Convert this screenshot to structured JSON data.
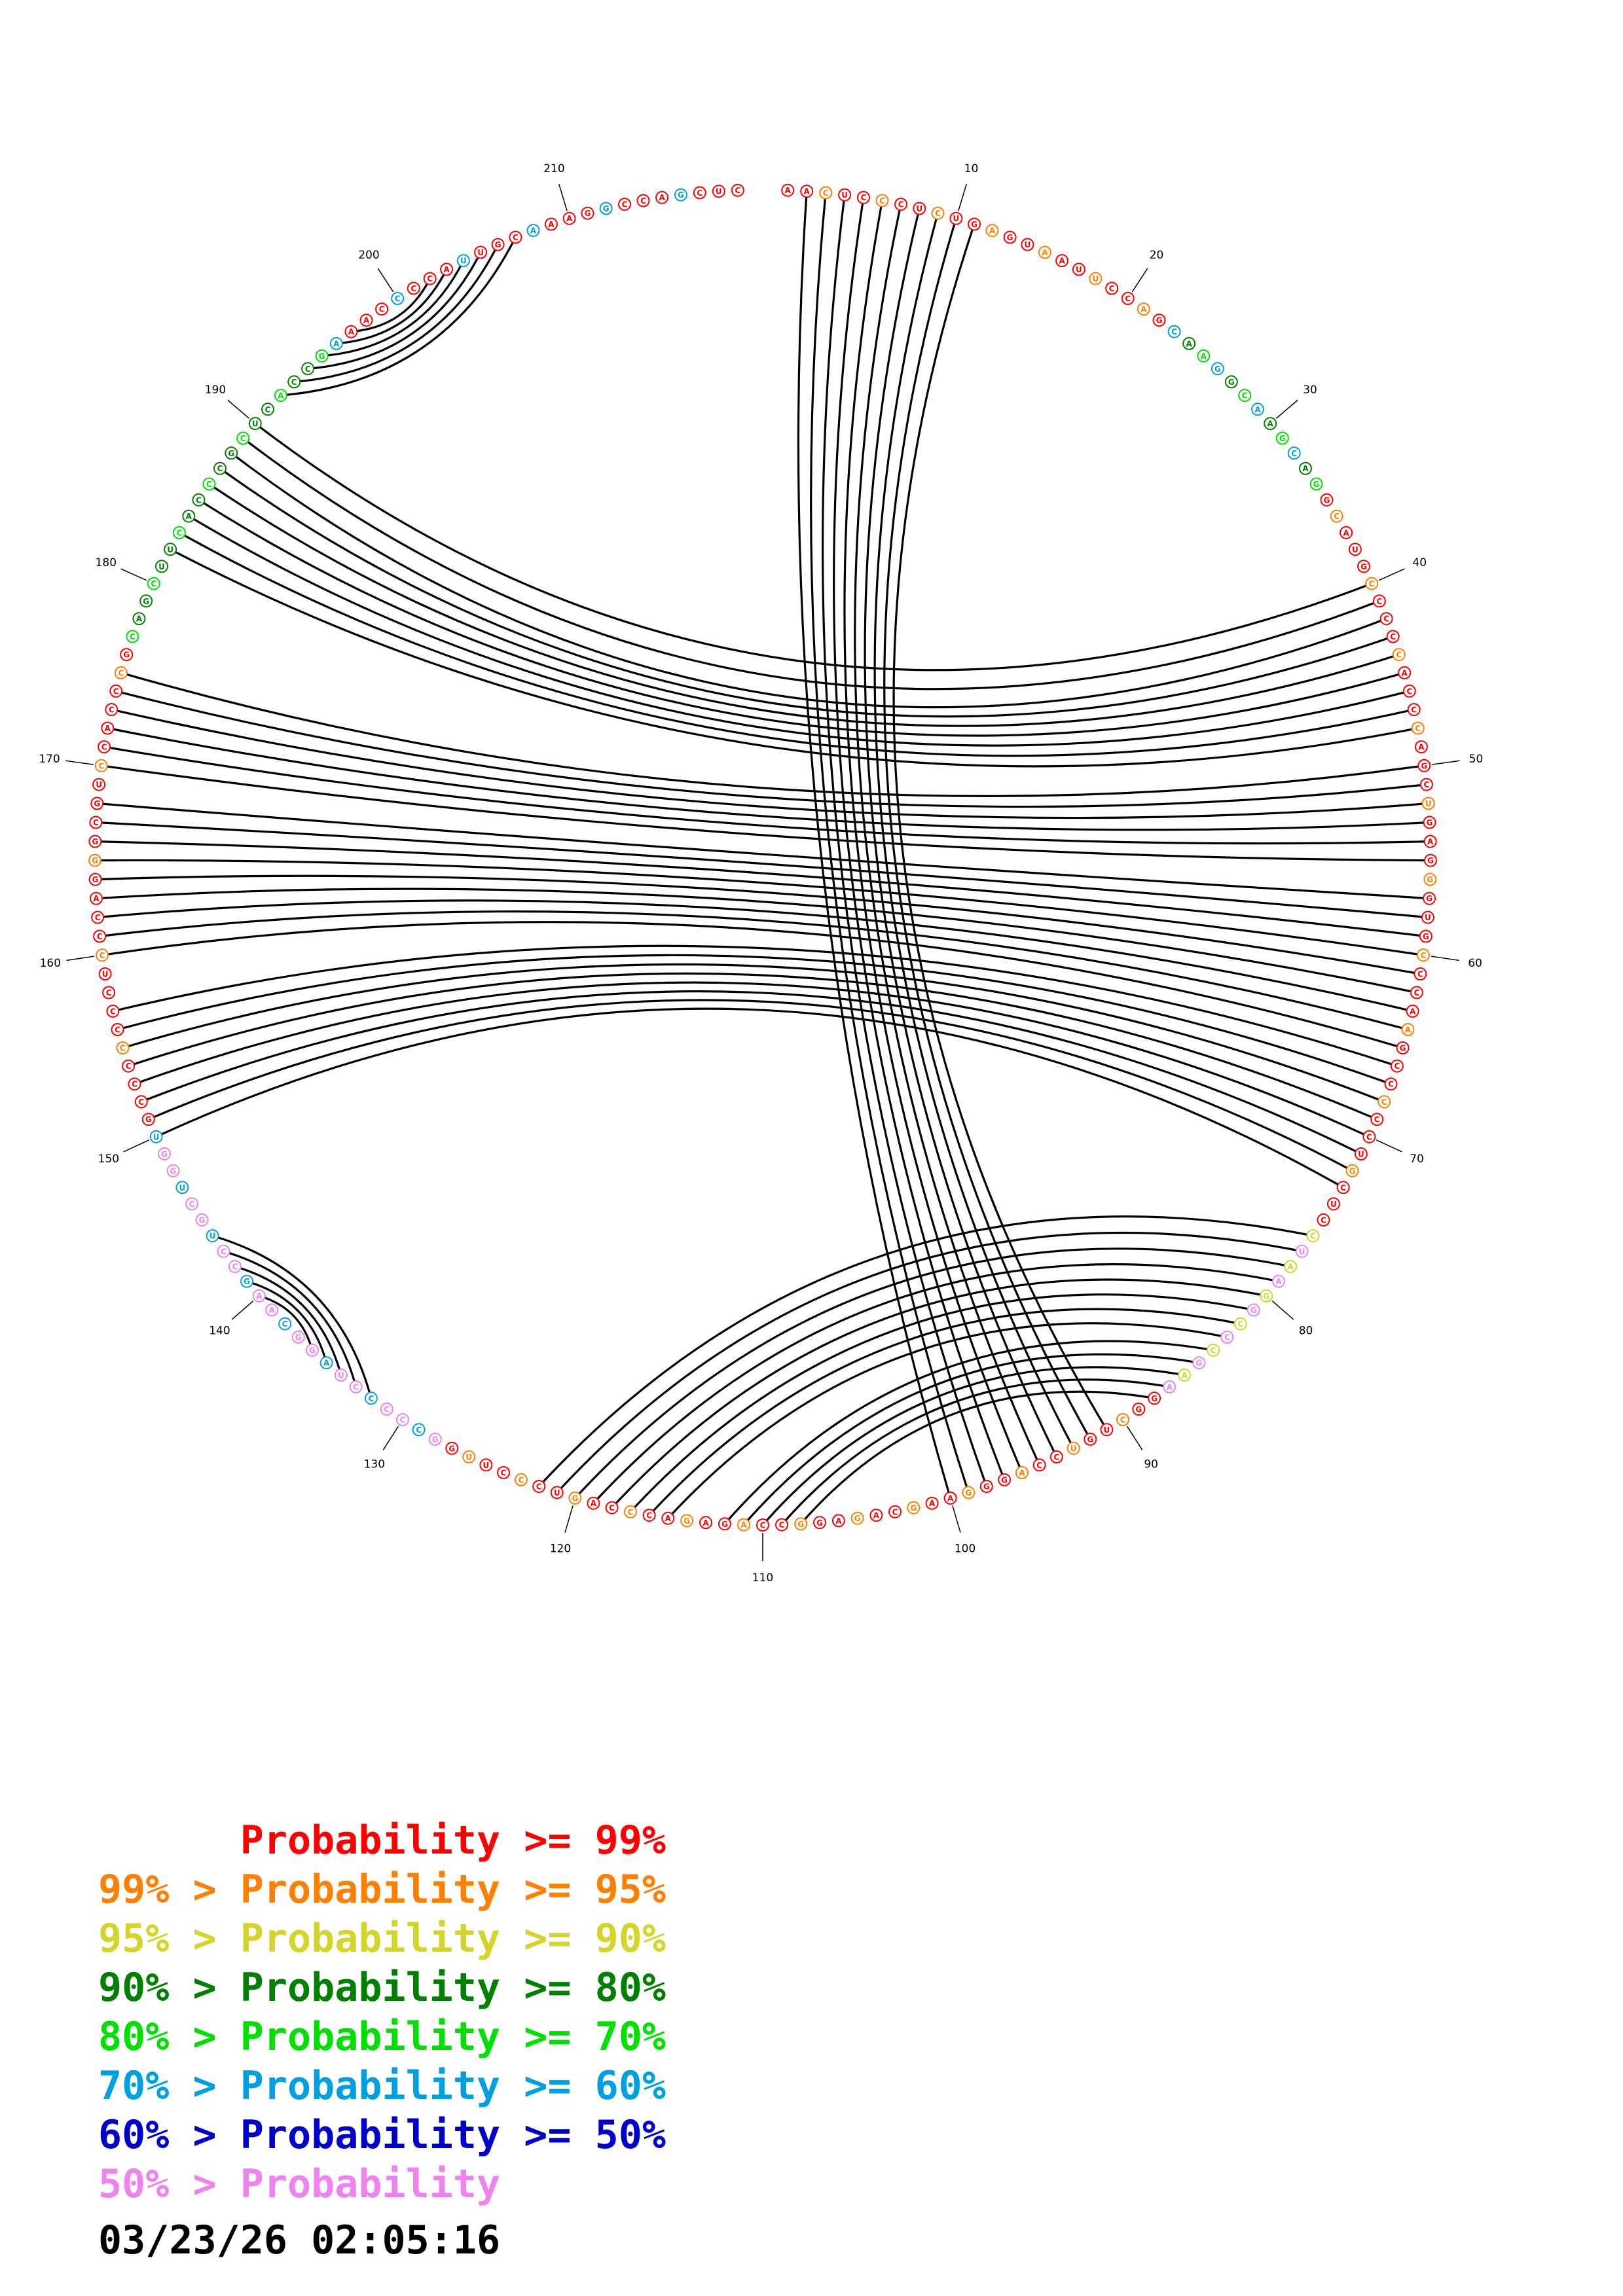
{
  "diagram": {
    "sequence": "AACUCCCUCUGAGUAAUUCCAGCAAGGCAAGCAGGCAUGCCCCCACCCAGCUGAGGGUGCCCAAGCCCCCUGCUCCUAAGGCCCGAAGGCUGUCCAGGGAAGCAGAGGCCAGAGACCCAGUCCCUUGGCCCCCUAGGCAAGCCUGCUGGUGCCCCCCCUCCCAGGGCGUCCACCCGCAGCUUCACCCGCUCACCGAAACCCCAUUGCAAAGGCCAGCUC",
    "index_labels": [
      "10",
      "20",
      "30",
      "40",
      "50",
      "60",
      "70",
      "80",
      "90",
      "100",
      "110",
      "120",
      "130",
      "140",
      "150",
      "160",
      "170",
      "180",
      "190",
      "200",
      "210"
    ],
    "pairs": [
      [
        2,
        100
      ],
      [
        3,
        99
      ],
      [
        4,
        98
      ],
      [
        5,
        97
      ],
      [
        6,
        96
      ],
      [
        7,
        95
      ],
      [
        8,
        94
      ],
      [
        9,
        93
      ],
      [
        10,
        92
      ],
      [
        11,
        91
      ],
      [
        40,
        190
      ],
      [
        41,
        189
      ],
      [
        42,
        188
      ],
      [
        43,
        187
      ],
      [
        44,
        186
      ],
      [
        45,
        185
      ],
      [
        46,
        184
      ],
      [
        47,
        183
      ],
      [
        48,
        182
      ],
      [
        50,
        175
      ],
      [
        51,
        174
      ],
      [
        52,
        173
      ],
      [
        53,
        172
      ],
      [
        54,
        171
      ],
      [
        55,
        170
      ],
      [
        57,
        168
      ],
      [
        58,
        167
      ],
      [
        59,
        166
      ],
      [
        60,
        165
      ],
      [
        61,
        164
      ],
      [
        62,
        163
      ],
      [
        63,
        162
      ],
      [
        64,
        161
      ],
      [
        65,
        160
      ],
      [
        66,
        157
      ],
      [
        67,
        156
      ],
      [
        68,
        155
      ],
      [
        69,
        154
      ],
      [
        70,
        153
      ],
      [
        71,
        152
      ],
      [
        72,
        151
      ],
      [
        73,
        150
      ],
      [
        76,
        122
      ],
      [
        77,
        121
      ],
      [
        78,
        120
      ],
      [
        79,
        119
      ],
      [
        80,
        118
      ],
      [
        81,
        117
      ],
      [
        82,
        116
      ],
      [
        83,
        115
      ],
      [
        84,
        112
      ],
      [
        85,
        111
      ],
      [
        86,
        110
      ],
      [
        87,
        109
      ],
      [
        88,
        108
      ],
      [
        132,
        144
      ],
      [
        133,
        143
      ],
      [
        134,
        142
      ],
      [
        135,
        141
      ],
      [
        136,
        140
      ],
      [
        192,
        207
      ],
      [
        193,
        206
      ],
      [
        194,
        205
      ],
      [
        195,
        204
      ],
      [
        196,
        203
      ],
      [
        197,
        202
      ]
    ],
    "probability_colors": [
      "#ff0000",
      "#ff8000",
      "#d4d42a",
      "#008000",
      "#00e000",
      "#00a0e0",
      "#0000cc",
      "#ee82ee"
    ],
    "nucleotide_colors": [
      0,
      0,
      0,
      0,
      0,
      0,
      0,
      0,
      0,
      0,
      0,
      0,
      0,
      0,
      0,
      0,
      0,
      0,
      0,
      0,
      0,
      0,
      0,
      0,
      0,
      0,
      0,
      0,
      0,
      0,
      0,
      0,
      0,
      0,
      0,
      0,
      0,
      0,
      0,
      0,
      0,
      0,
      0,
      0,
      0,
      0,
      0,
      0,
      0,
      0,
      0,
      0,
      0,
      0,
      0,
      0,
      0,
      0,
      0,
      0,
      0,
      0,
      0,
      0,
      0,
      0,
      0,
      0,
      0,
      0,
      0,
      0,
      0,
      0,
      0,
      0,
      0,
      0,
      0,
      0,
      0,
      0,
      0,
      0,
      0,
      0,
      0,
      0,
      0,
      0,
      0,
      0,
      0,
      0,
      0,
      0,
      0,
      0,
      0,
      0,
      0,
      0,
      0,
      0,
      0,
      0,
      0,
      0,
      0,
      0,
      0,
      0,
      0,
      0,
      0,
      0,
      0,
      0,
      0,
      0,
      0,
      0,
      0,
      0,
      0,
      0,
      0,
      0,
      0,
      0,
      0,
      0,
      0,
      0,
      0,
      0,
      0,
      0,
      0,
      0,
      0,
      0,
      0,
      0,
      0,
      0,
      0,
      0,
      0,
      0,
      0,
      0,
      0,
      0,
      0,
      0,
      0,
      0,
      0,
      0,
      0,
      0,
      0,
      0,
      0,
      0,
      0,
      0,
      0,
      0,
      0,
      0,
      0,
      0,
      0,
      0,
      0,
      0,
      0,
      0,
      0,
      0,
      0,
      0,
      0,
      0,
      0,
      0,
      0,
      0,
      0,
      0,
      0,
      0,
      0,
      0,
      0,
      0,
      0,
      0,
      0,
      0,
      0,
      0,
      0,
      0,
      0,
      0,
      0,
      0,
      0,
      0,
      0,
      0,
      0,
      0,
      0,
      0,
      0,
      0,
      0,
      0
    ]
  },
  "legend": {
    "rows": [
      {
        "prefix": "",
        "label": "Probability >= 99%",
        "color": "#ff0000"
      },
      {
        "prefix": "99% > ",
        "label": "Probability >= 95%",
        "color": "#ff8000"
      },
      {
        "prefix": "95% > ",
        "label": "Probability >= 90%",
        "color": "#d4d42a"
      },
      {
        "prefix": "90% > ",
        "label": "Probability >= 80%",
        "color": "#008000"
      },
      {
        "prefix": "80% > ",
        "label": "Probability >= 70%",
        "color": "#00e000"
      },
      {
        "prefix": "70% > ",
        "label": "Probability >= 60%",
        "color": "#00a0e0"
      },
      {
        "prefix": "60% > ",
        "label": "Probability >= 50%",
        "color": "#0000cc"
      },
      {
        "prefix": "50% > ",
        "label": "Probability",
        "color": "#ee82ee"
      }
    ]
  },
  "timestamp": "03/23/26 02:05:16"
}
